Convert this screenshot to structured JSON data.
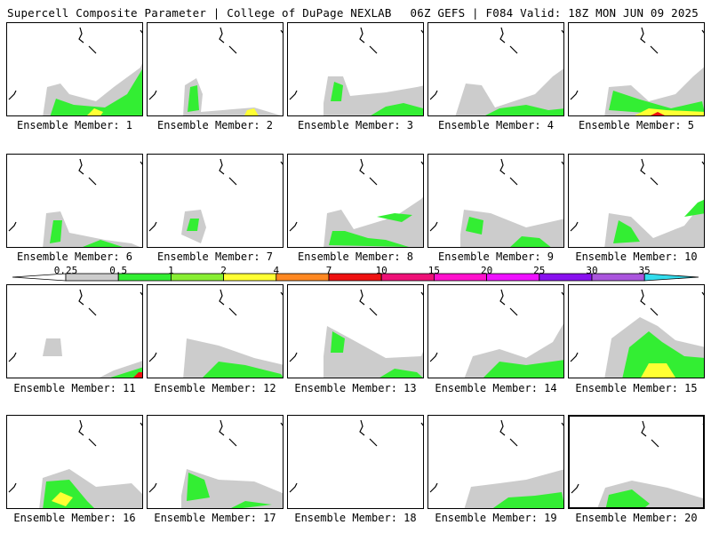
{
  "header": {
    "left": "Supercell Composite Parameter | College of DuPage NEXLAB",
    "right": "06Z GEFS | F084 Valid: 18Z MON JUN 09 2025"
  },
  "legend": {
    "labels": [
      "0.25",
      "0.5",
      "1",
      "2",
      "4",
      "7",
      "10",
      "15",
      "20",
      "25",
      "30",
      "35"
    ],
    "colors": [
      "#ffffff",
      "#cccccc",
      "#33ee33",
      "#88ee33",
      "#ffff33",
      "#ff8822",
      "#ee1111",
      "#ee1177",
      "#ff11cc",
      "#ee11ff",
      "#8811ee",
      "#aa55dd",
      "#33ddee"
    ]
  },
  "panels": [
    {
      "member": 1,
      "label": "Ensemble Member: 1"
    },
    {
      "member": 2,
      "label": "Ensemble Member: 2"
    },
    {
      "member": 3,
      "label": "Ensemble Member: 3"
    },
    {
      "member": 4,
      "label": "Ensemble Member: 4"
    },
    {
      "member": 5,
      "label": "Ensemble Member: 5"
    },
    {
      "member": 6,
      "label": "Ensemble Member: 6"
    },
    {
      "member": 7,
      "label": "Ensemble Member: 7"
    },
    {
      "member": 8,
      "label": "Ensemble Member: 8"
    },
    {
      "member": 9,
      "label": "Ensemble Member: 9"
    },
    {
      "member": 10,
      "label": "Ensemble Member: 10"
    },
    {
      "member": 11,
      "label": "Ensemble Member: 11"
    },
    {
      "member": 12,
      "label": "Ensemble Member: 12"
    },
    {
      "member": 13,
      "label": "Ensemble Member: 13"
    },
    {
      "member": 14,
      "label": "Ensemble Member: 14"
    },
    {
      "member": 15,
      "label": "Ensemble Member: 15"
    },
    {
      "member": 16,
      "label": "Ensemble Member: 16"
    },
    {
      "member": 17,
      "label": "Ensemble Member: 17"
    },
    {
      "member": 18,
      "label": "Ensemble Member: 18"
    },
    {
      "member": 19,
      "label": "Ensemble Member: 19"
    },
    {
      "member": 20,
      "label": "Ensemble Member: 20"
    }
  ],
  "selected_member": 20
}
